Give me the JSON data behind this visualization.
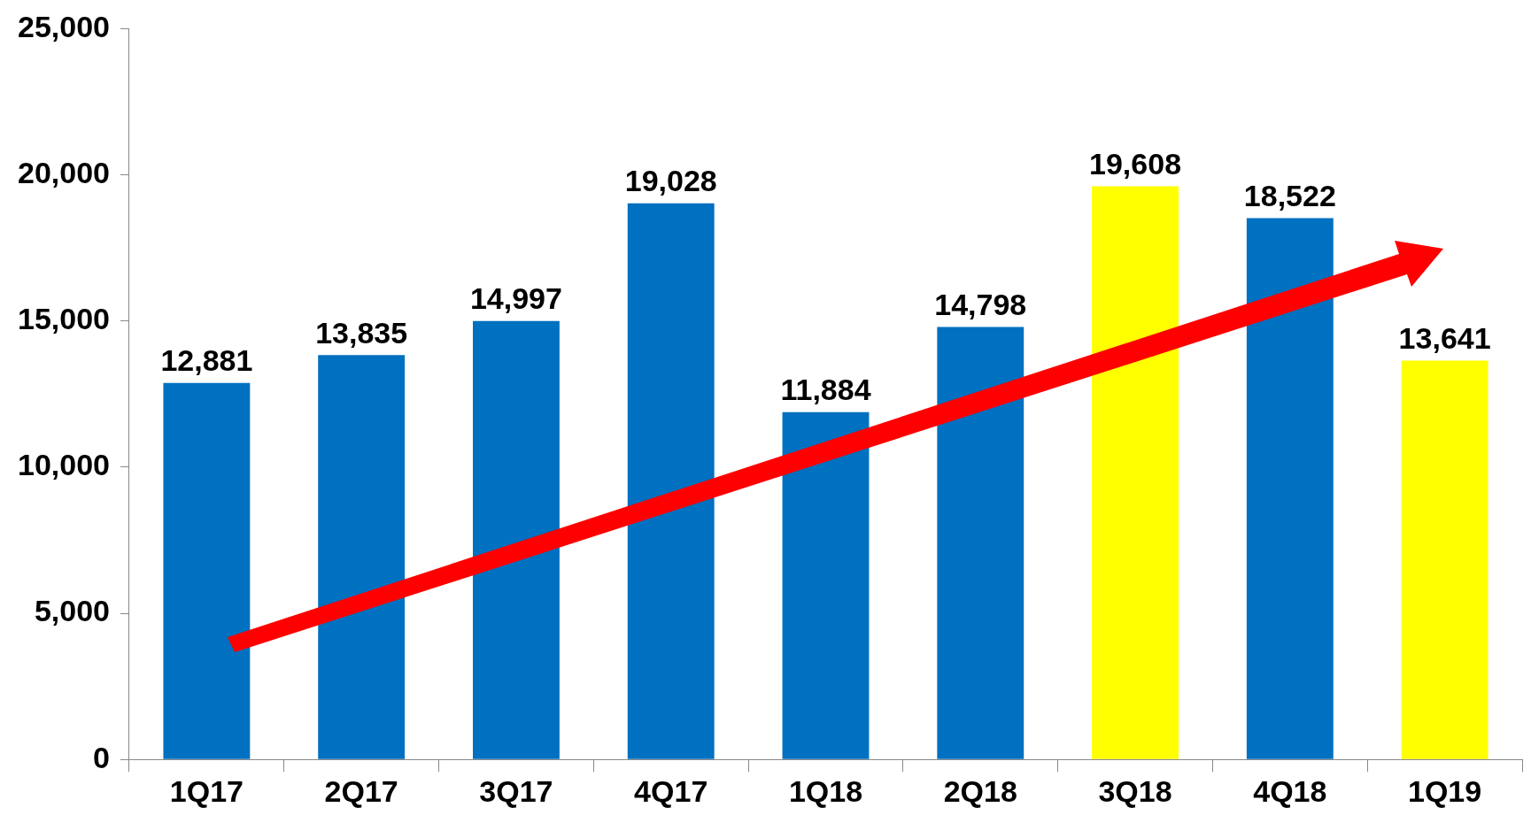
{
  "chart_data": {
    "type": "bar",
    "categories": [
      "1Q17",
      "2Q17",
      "3Q17",
      "4Q17",
      "1Q18",
      "2Q18",
      "3Q18",
      "4Q18",
      "1Q19"
    ],
    "values": [
      12881,
      13835,
      14997,
      19028,
      11884,
      14798,
      19608,
      18522,
      13641
    ],
    "colors": [
      "#0070c0",
      "#0070c0",
      "#0070c0",
      "#0070c0",
      "#0070c0",
      "#0070c0",
      "#ffff00",
      "#0070c0",
      "#ffff00"
    ],
    "value_labels": [
      "12,881",
      "13,835",
      "14,997",
      "19,028",
      "11,884",
      "14,798",
      "19,608",
      "18,522",
      "13,641"
    ],
    "ylim": [
      0,
      25000
    ],
    "yticks": [
      {
        "value": 0,
        "label": "0"
      },
      {
        "value": 5000,
        "label": "5,000"
      },
      {
        "value": 10000,
        "label": "10,000"
      },
      {
        "value": 15000,
        "label": "15,000"
      },
      {
        "value": 20000,
        "label": "20,000"
      },
      {
        "value": 25000,
        "label": "25,000"
      }
    ],
    "legend": false
  }
}
